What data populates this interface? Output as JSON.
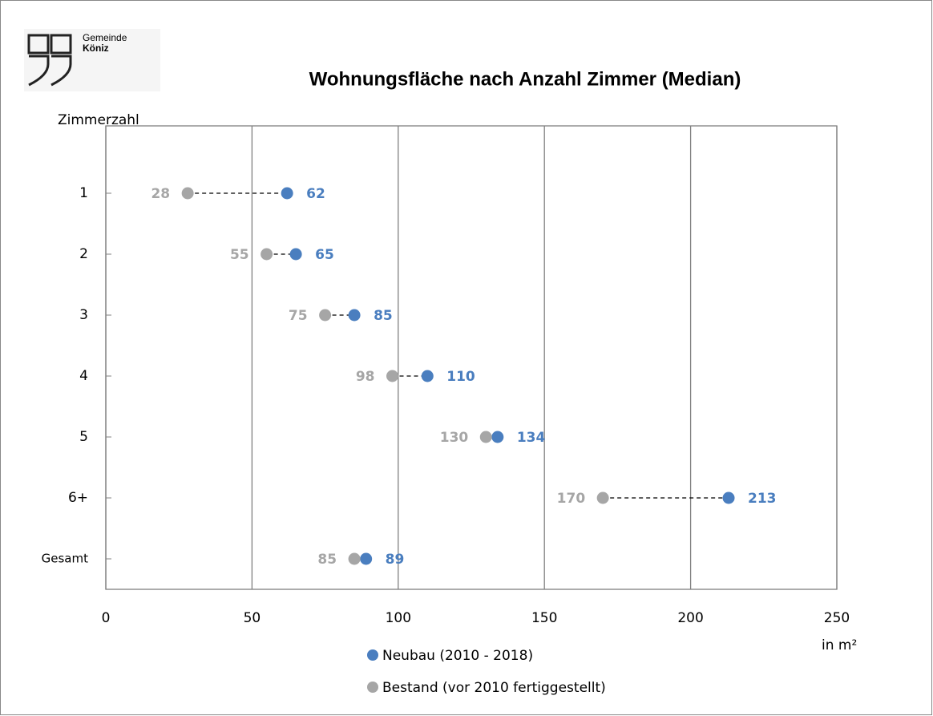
{
  "logo": {
    "line1": "Gemeinde",
    "line2": "Köniz"
  },
  "chart_data": {
    "type": "dumbbell",
    "title": "Wohnungsfläche nach Anzahl Zimmer (Median)",
    "y_label": "Zimmerzahl",
    "x_label": "in m²",
    "categories": [
      "1",
      "2",
      "3",
      "4",
      "5",
      "6+",
      "Gesamt"
    ],
    "series": [
      {
        "name": "Neubau (2010 - 2018)",
        "color": "#4a7ebf",
        "values": [
          62,
          65,
          85,
          110,
          134,
          213,
          89
        ]
      },
      {
        "name": "Bestand (vor 2010 fertiggestellt)",
        "color": "#a6a6a6",
        "values": [
          28,
          55,
          75,
          98,
          130,
          170,
          85
        ]
      }
    ],
    "xlim": [
      0,
      250
    ],
    "xticks": [
      0,
      50,
      100,
      150,
      200,
      250
    ],
    "grid": true
  }
}
